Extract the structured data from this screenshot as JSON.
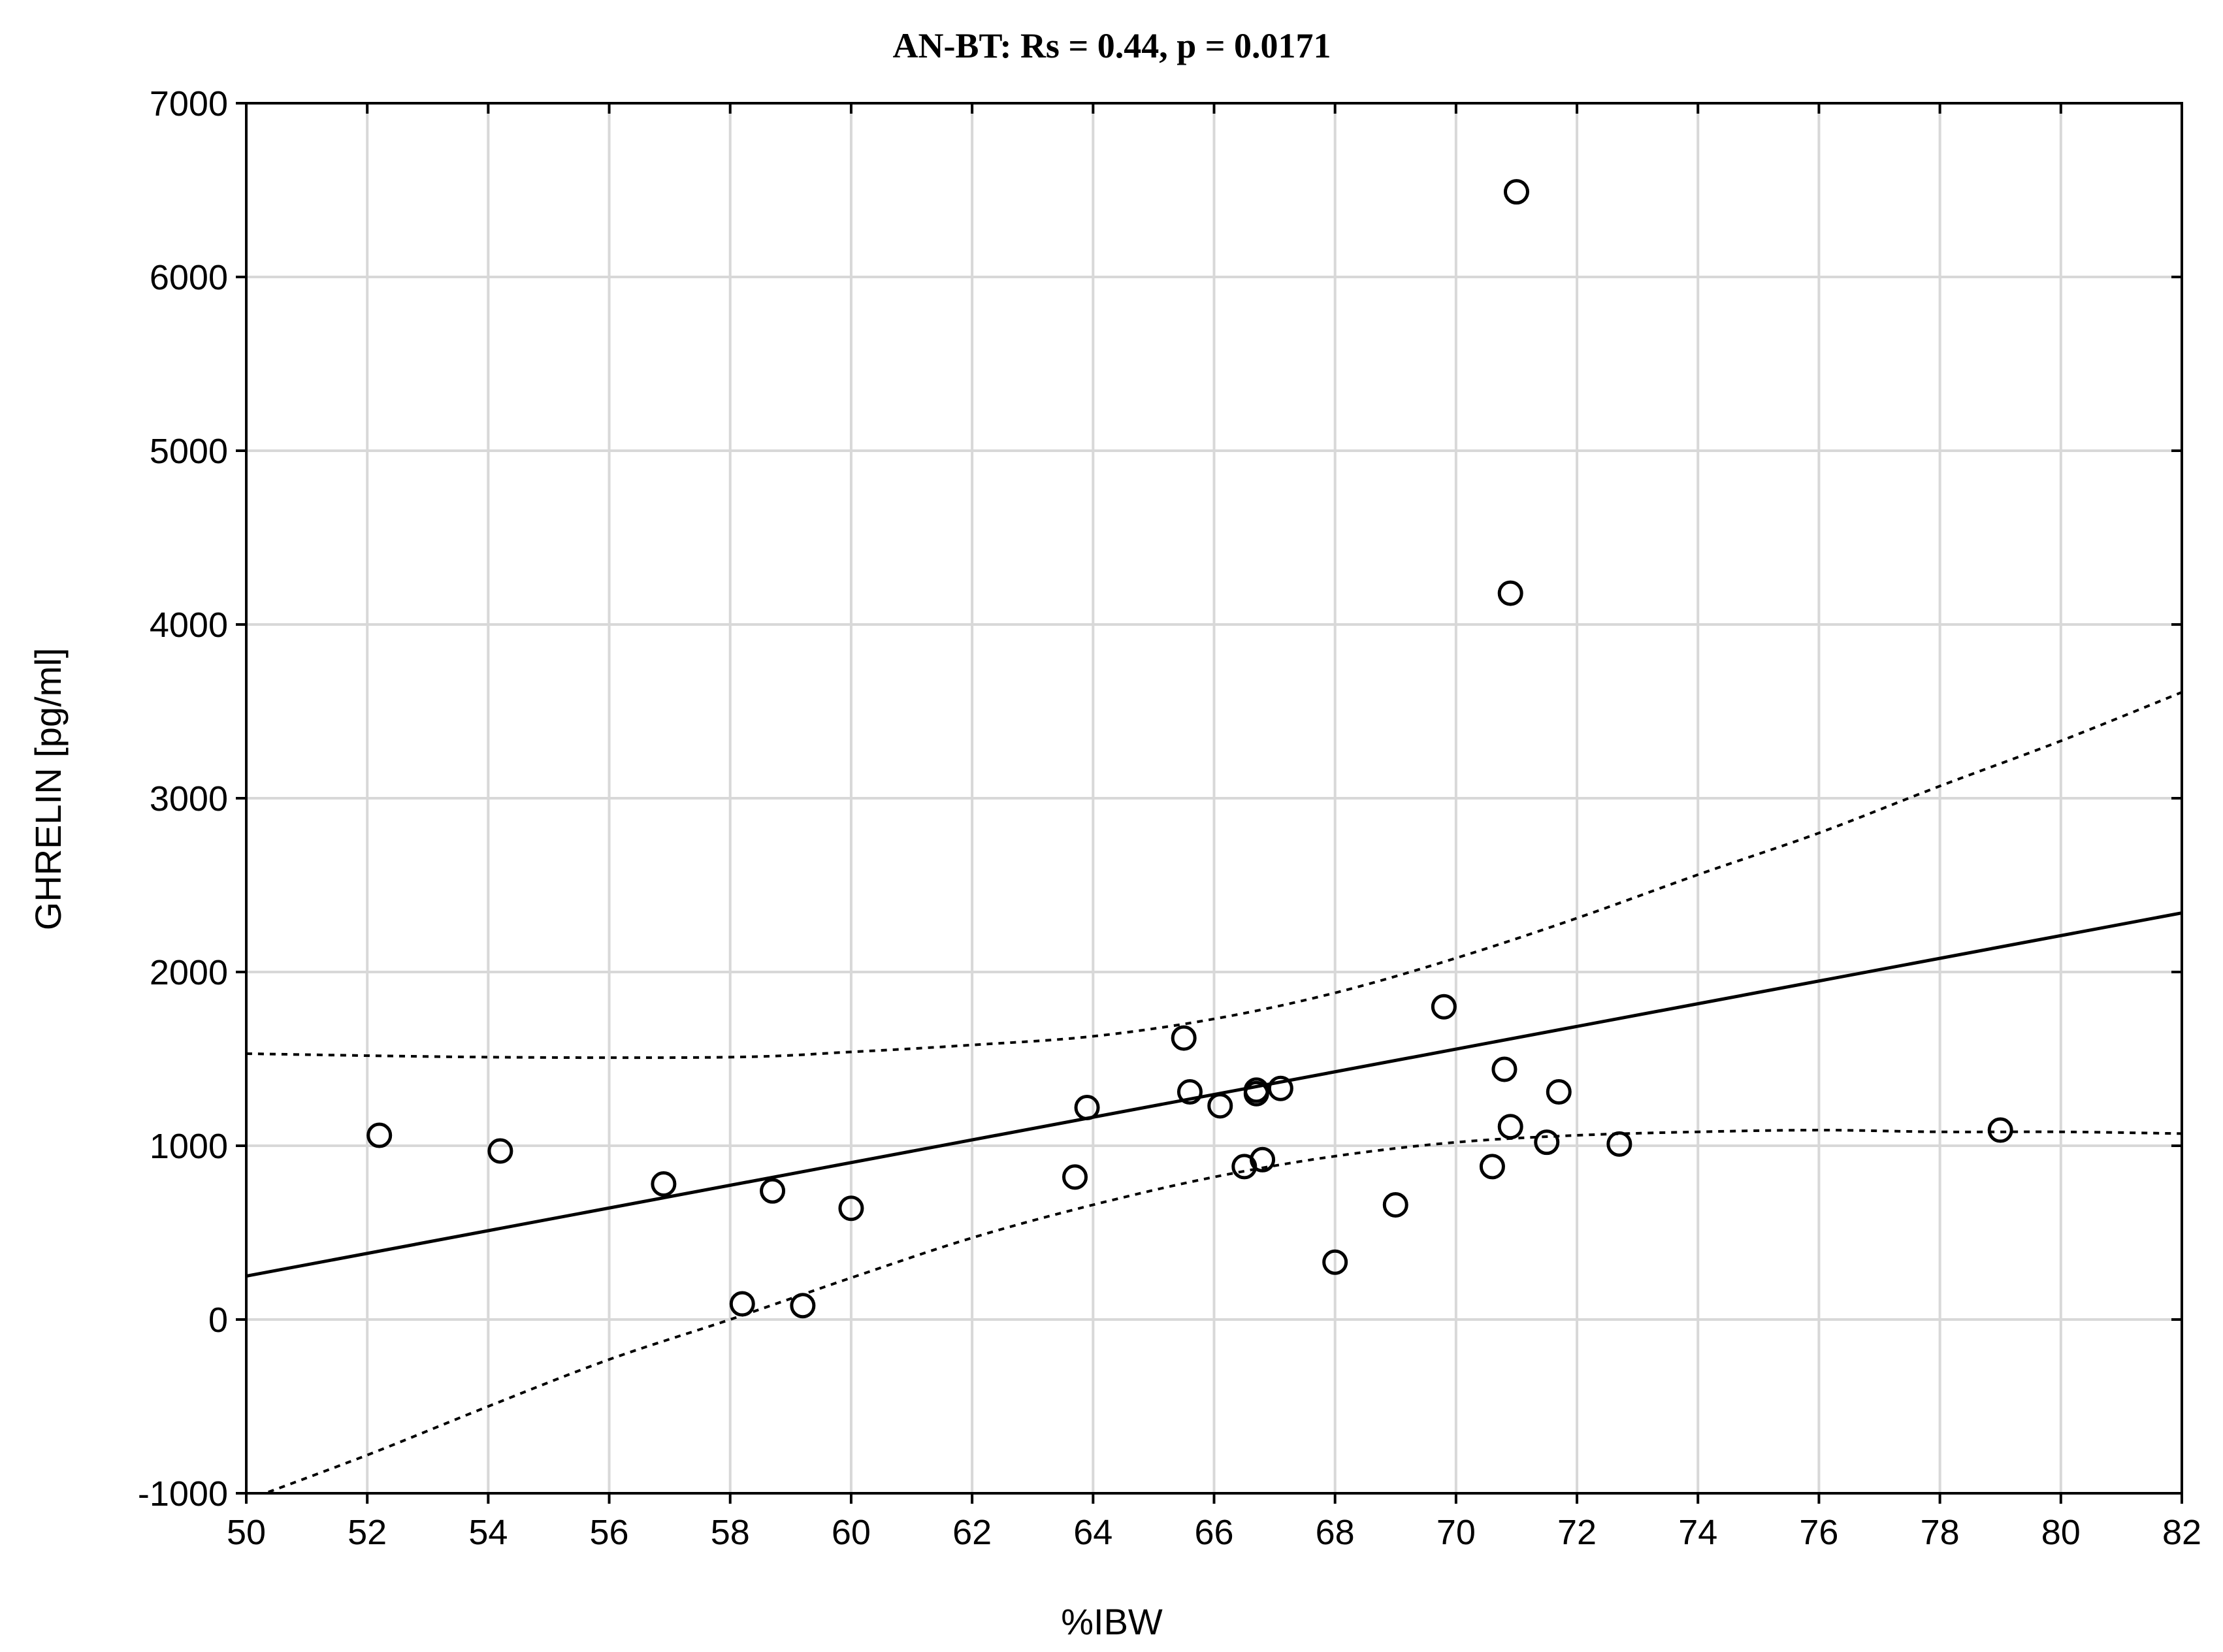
{
  "chart_data": {
    "type": "scatter",
    "title": "AN-BT: Rs =  0.44, p = 0.0171",
    "xlabel": "%IBW",
    "ylabel": "GHRELIN [pg/ml]",
    "xlim": [
      50,
      82
    ],
    "ylim": [
      -1000,
      7000
    ],
    "x_ticks": [
      50,
      52,
      54,
      56,
      58,
      60,
      62,
      64,
      66,
      68,
      70,
      72,
      74,
      76,
      78,
      80,
      82
    ],
    "x_tick_labels": [
      "50",
      "52",
      "54",
      "56",
      "58",
      "60",
      "62",
      "64",
      "66",
      "68",
      "70",
      "72",
      "74",
      "76",
      "78",
      "80",
      "82"
    ],
    "y_ticks": [
      -1000,
      0,
      1000,
      2000,
      3000,
      4000,
      5000,
      6000,
      7000
    ],
    "y_tick_labels": [
      "-1000",
      "0",
      "1000",
      "2000",
      "3000",
      "4000",
      "5000",
      "6000",
      "7000"
    ],
    "grid": true,
    "legend": "none",
    "marker": "open-circle",
    "series": [
      {
        "kind": "points",
        "x": [
          52.2,
          54.2,
          56.9,
          58.2,
          58.7,
          59.2,
          60.0,
          63.7,
          63.9,
          65.5,
          65.6,
          66.1,
          66.5,
          66.7,
          66.7,
          66.8,
          67.1,
          68.0,
          69.0,
          69.8,
          70.6,
          70.8,
          70.9,
          70.9,
          71.0,
          71.5,
          71.7,
          72.7,
          79.0
        ],
        "y": [
          1060,
          970,
          780,
          90,
          740,
          80,
          640,
          820,
          1220,
          1620,
          1310,
          1230,
          880,
          1300,
          1320,
          920,
          1330,
          330,
          660,
          1800,
          880,
          1440,
          1110,
          4180,
          6490,
          1020,
          1310,
          1010,
          1090
        ]
      },
      {
        "kind": "regression-line",
        "style": "solid",
        "x": [
          50,
          82
        ],
        "y": [
          250,
          2340
        ]
      },
      {
        "kind": "confidence-band-upper",
        "style": "dotted",
        "x": [
          50,
          54,
          58,
          60,
          62,
          64,
          66,
          68,
          70,
          72,
          74,
          76,
          78,
          80,
          82
        ],
        "y": [
          1530,
          1510,
          1510,
          1540,
          1580,
          1630,
          1730,
          1880,
          2080,
          2310,
          2560,
          2800,
          3070,
          3330,
          3610
        ]
      },
      {
        "kind": "confidence-band-lower",
        "style": "dotted",
        "x": [
          50,
          52,
          54,
          56,
          58,
          60,
          62,
          64,
          66,
          68,
          70,
          72,
          74,
          76,
          78,
          80,
          82
        ],
        "y": [
          -1040,
          -780,
          -500,
          -230,
          0,
          240,
          470,
          660,
          820,
          940,
          1020,
          1060,
          1080,
          1090,
          1080,
          1080,
          1070
        ]
      }
    ],
    "colors": {
      "background": "#ffffff",
      "grid": "#d8d8d8",
      "axis": "#000000",
      "marks": "#000000"
    }
  }
}
